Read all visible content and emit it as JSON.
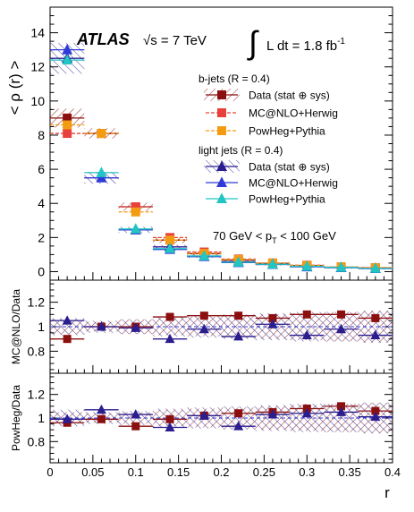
{
  "header": {
    "experiment": "ATLAS",
    "energy": "√s = 7 TeV",
    "lumi_prefix": "L dt = 1.8 fb",
    "lumi_sup": "-1"
  },
  "legend": {
    "bjets_title": "b-jets (R = 0.4)",
    "ljets_title": "light jets (R = 0.4)",
    "entries": {
      "b_data": "Data (stat ⊕ sys)",
      "b_mcnlo": "MC@NLO+Herwig",
      "b_powheg": "PowHeg+Pythia",
      "l_data": "Data (stat ⊕ sys)",
      "l_mcnlo": "MC@NLO+Herwig",
      "l_powheg": "PowHeg+Pythia"
    }
  },
  "cut_label": {
    "prefix": "70 GeV < p",
    "sub": "T",
    "suffix": " < 100 GeV"
  },
  "colors": {
    "b_data": "#8b0f0f",
    "b_mcnlo": "#e8413c",
    "b_powheg": "#f39c12",
    "l_data": "#2a1d8f",
    "l_mcnlo": "#2e3bd6",
    "l_powheg": "#22c4c4"
  },
  "chart_data": {
    "type": "scatter",
    "x_label": "r",
    "x_ticks": [
      "0",
      "0.05",
      "0.1",
      "0.15",
      "0.2",
      "0.25",
      "0.3",
      "0.35",
      "0.4"
    ],
    "xlim": [
      0,
      0.4
    ],
    "bin_centers": [
      0.02,
      0.06,
      0.1,
      0.14,
      0.18,
      0.22,
      0.26,
      0.3,
      0.34,
      0.38
    ],
    "bin_half_width": 0.02,
    "main": {
      "ylabel": "< ρ (r) >",
      "ylim": [
        -0.5,
        15.5
      ],
      "y_ticks": [
        "0",
        "2",
        "4",
        "6",
        "8",
        "10",
        "12",
        "14"
      ],
      "series": [
        {
          "name": "b-jets Data (stat ⊕ sys)",
          "key": "b_data",
          "marker": "square",
          "values": [
            9.0,
            8.1,
            3.8,
            1.85,
            1.05,
            0.68,
            0.48,
            0.35,
            0.26,
            0.22
          ],
          "band": [
            0.55,
            0.3,
            0.25,
            0.18,
            0.12,
            0.09,
            0.07,
            0.06,
            0.05,
            0.05
          ]
        },
        {
          "name": "b-jets MC@NLO+Herwig",
          "key": "b_mcnlo",
          "marker": "square",
          "values": [
            8.1,
            8.1,
            3.8,
            2.0,
            1.15,
            0.74,
            0.51,
            0.38,
            0.28,
            0.23
          ]
        },
        {
          "name": "b-jets PowHeg+Pythia",
          "key": "b_powheg",
          "marker": "square",
          "values": [
            8.6,
            8.1,
            3.5,
            1.85,
            1.07,
            0.71,
            0.5,
            0.37,
            0.28,
            0.23
          ]
        },
        {
          "name": "light jets Data (stat ⊕ sys)",
          "key": "l_data",
          "marker": "triangle",
          "values": [
            12.5,
            5.5,
            2.45,
            1.45,
            0.9,
            0.58,
            0.42,
            0.3,
            0.24,
            0.19
          ],
          "band": [
            0.9,
            0.35,
            0.18,
            0.12,
            0.09,
            0.07,
            0.06,
            0.05,
            0.05,
            0.04
          ]
        },
        {
          "name": "light jets MC@NLO+Herwig",
          "key": "l_mcnlo",
          "marker": "triangle",
          "values": [
            13.0,
            5.5,
            2.45,
            1.3,
            0.88,
            0.53,
            0.43,
            0.28,
            0.23,
            0.18
          ]
        },
        {
          "name": "light jets PowHeg+Pythia",
          "key": "l_powheg",
          "marker": "triangle",
          "values": [
            12.4,
            5.8,
            2.5,
            1.35,
            0.92,
            0.55,
            0.43,
            0.31,
            0.25,
            0.19
          ]
        }
      ]
    },
    "ratio_mc": {
      "ylabel": "MC@NLO/Data",
      "ylim": [
        0.62,
        1.38
      ],
      "y_ticks": [
        "0.8",
        "1",
        "1.2"
      ],
      "series": [
        {
          "name": "b-jets",
          "key": "b_data",
          "marker": "square",
          "values": [
            0.9,
            1.0,
            1.0,
            1.08,
            1.09,
            1.09,
            1.07,
            1.1,
            1.1,
            1.07
          ],
          "band_half": [
            0.06,
            0.04,
            0.06,
            0.07,
            0.08,
            0.09,
            0.1,
            0.11,
            0.12,
            0.13
          ]
        },
        {
          "name": "light jets",
          "key": "l_data",
          "marker": "triangle",
          "values": [
            1.05,
            1.0,
            0.99,
            0.9,
            0.98,
            0.92,
            1.02,
            0.93,
            0.98,
            0.93
          ],
          "band_half": [
            0.07,
            0.05,
            0.06,
            0.08,
            0.09,
            0.1,
            0.11,
            0.12,
            0.12,
            0.13
          ]
        }
      ]
    },
    "ratio_powheg": {
      "ylabel": "PowHeg/Data",
      "ylim": [
        0.62,
        1.38
      ],
      "y_ticks": [
        "0.8",
        "1",
        "1.2"
      ],
      "series": [
        {
          "name": "b-jets",
          "key": "b_data",
          "marker": "square",
          "values": [
            0.96,
            0.99,
            0.93,
            0.99,
            1.02,
            1.04,
            1.05,
            1.08,
            1.1,
            1.06
          ],
          "band_half": [
            0.05,
            0.04,
            0.05,
            0.07,
            0.08,
            0.09,
            0.1,
            0.11,
            0.12,
            0.13
          ]
        },
        {
          "name": "light jets",
          "key": "l_data",
          "marker": "triangle",
          "values": [
            0.99,
            1.07,
            1.03,
            0.92,
            1.02,
            0.93,
            1.03,
            1.04,
            1.05,
            1.01
          ],
          "band_half": [
            0.07,
            0.05,
            0.06,
            0.08,
            0.09,
            0.1,
            0.11,
            0.12,
            0.12,
            0.13
          ]
        }
      ]
    }
  }
}
